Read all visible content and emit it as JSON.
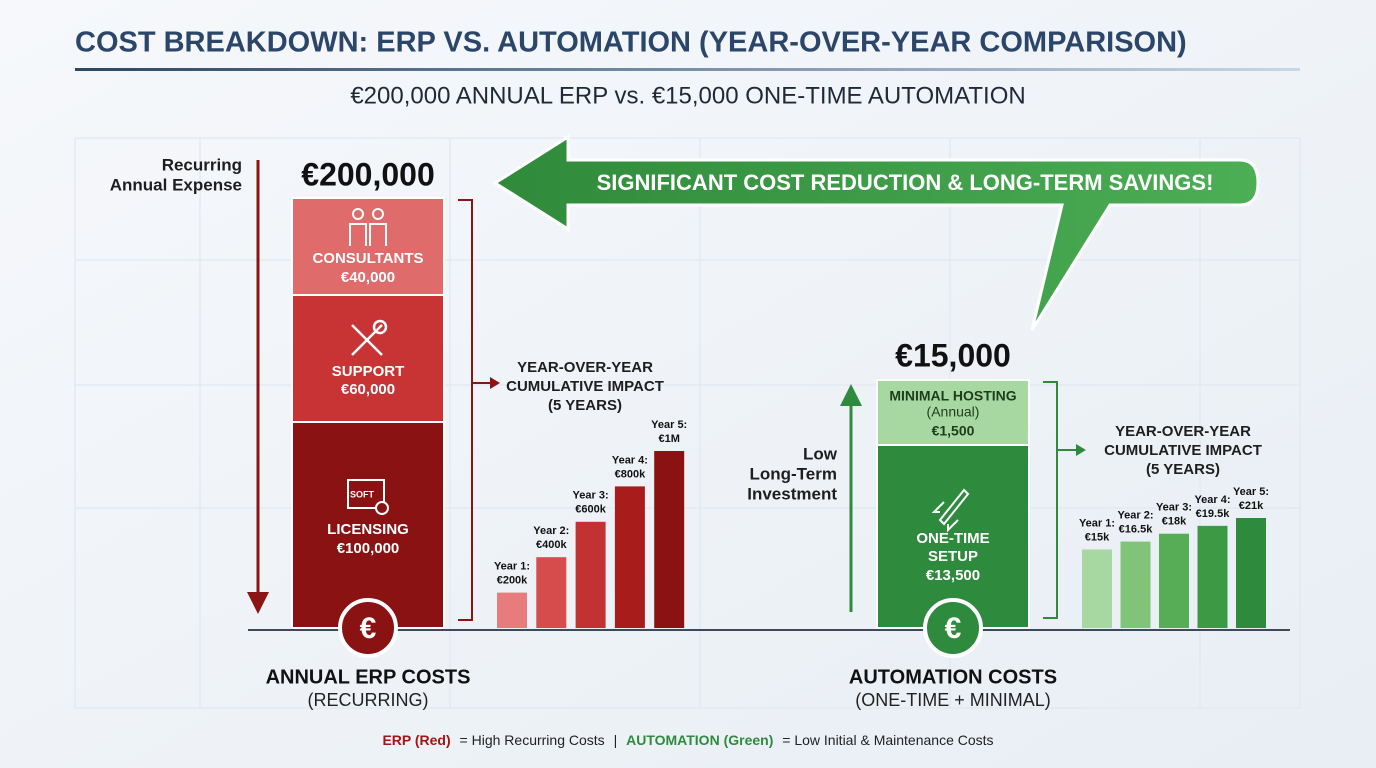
{
  "title": "COST BREAKDOWN: ERP VS. AUTOMATION (YEAR-OVER-YEAR COMPARISON)",
  "subtitle": "€200,000 ANNUAL ERP vs. €15,000 ONE-TIME AUTOMATION",
  "banner": "SIGNIFICANT COST REDUCTION & LONG-TERM SAVINGS!",
  "erp": {
    "side_note": [
      "Recurring",
      "Annual Expense"
    ],
    "total": "€200,000",
    "segments": [
      {
        "name": [
          "CONSULTANTS"
        ],
        "amount": "€40,000"
      },
      {
        "name": [
          "SUPPORT"
        ],
        "amount": "€60,000"
      },
      {
        "name": [
          "LICENSING"
        ],
        "amount": "€100,000"
      }
    ],
    "impact_title": [
      "YEAR-OVER-YEAR",
      "CUMULATIVE IMPACT",
      "(5 YEARS)"
    ],
    "bars": [
      {
        "label": "Year 1:",
        "value_label": "€200k",
        "value": 200000
      },
      {
        "label": "Year 2:",
        "value_label": "€400k",
        "value": 400000
      },
      {
        "label": "Year 3:",
        "value_label": "€600k",
        "value": 600000
      },
      {
        "label": "Year 4:",
        "value_label": "€800k",
        "value": 800000
      },
      {
        "label": "Year 5:",
        "value_label": "€1M",
        "value": 1000000
      }
    ],
    "caption": "ANNUAL ERP COSTS",
    "caption_sub": "(RECURRING)"
  },
  "automation": {
    "side_note": [
      "Low",
      "Long-Term",
      "Investment"
    ],
    "total": "€15,000",
    "segments": [
      {
        "name": [
          "MINIMAL HOSTING"
        ],
        "note": "(Annual)",
        "amount": "€1,500"
      },
      {
        "name": [
          "ONE-TIME",
          "SETUP"
        ],
        "amount": "€13,500"
      }
    ],
    "impact_title": [
      "YEAR-OVER-YEAR",
      "CUMULATIVE IMPACT",
      "(5 YEARS)"
    ],
    "bars": [
      {
        "label": "Year 1:",
        "value_label": "€15k",
        "value": 15000
      },
      {
        "label": "Year 2:",
        "value_label": "€16.5k",
        "value": 16500
      },
      {
        "label": "Year 3:",
        "value_label": "€18k",
        "value": 18000
      },
      {
        "label": "Year 4:",
        "value_label": "€19.5k",
        "value": 19500
      },
      {
        "label": "Year 5:",
        "value_label": "€21k",
        "value": 21000
      }
    ],
    "caption": "AUTOMATION COSTS",
    "caption_sub": "(ONE-TIME + MINIMAL)"
  },
  "footer": {
    "erp_key": "ERP (Red)",
    "erp_text": "= High Recurring Costs",
    "separator": "|",
    "auto_key": "AUTOMATION (Green)",
    "auto_text": "= Low Initial & Maintenance Costs"
  }
}
